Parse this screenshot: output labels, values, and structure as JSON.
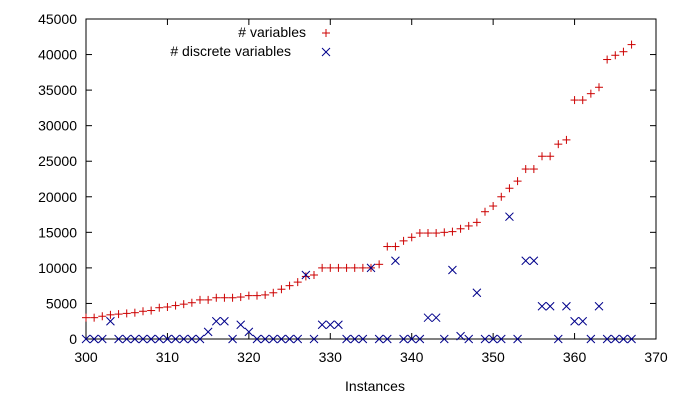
{
  "chart_data": {
    "type": "scatter",
    "title": "",
    "xlabel": "Instances",
    "ylabel": "",
    "xlim": [
      300,
      370
    ],
    "ylim": [
      0,
      45000
    ],
    "x_ticks": [
      300,
      310,
      320,
      330,
      340,
      350,
      360,
      370
    ],
    "y_ticks": [
      0,
      5000,
      10000,
      15000,
      20000,
      25000,
      30000,
      35000,
      40000,
      45000
    ],
    "grid": false,
    "legend_position": "top-left",
    "series": [
      {
        "name": "# variables",
        "marker": "plus",
        "color": "#cc0000",
        "x": [
          300,
          301,
          302,
          303,
          304,
          305,
          306,
          307,
          308,
          309,
          310,
          311,
          312,
          313,
          314,
          315,
          316,
          317,
          318,
          319,
          320,
          321,
          322,
          323,
          324,
          325,
          326,
          327,
          328,
          329,
          330,
          331,
          332,
          333,
          334,
          335,
          336,
          337,
          338,
          339,
          340,
          341,
          342,
          343,
          344,
          345,
          346,
          347,
          348,
          349,
          350,
          351,
          352,
          353,
          354,
          355,
          356,
          357,
          358,
          359,
          360,
          361,
          362,
          363,
          364,
          365,
          366,
          367
        ],
        "y": [
          3000,
          3000,
          3200,
          3400,
          3500,
          3600,
          3700,
          3900,
          4000,
          4400,
          4500,
          4700,
          4900,
          5100,
          5500,
          5500,
          5800,
          5800,
          5800,
          5900,
          6100,
          6100,
          6200,
          6500,
          7000,
          7500,
          8000,
          8800,
          9000,
          10000,
          10000,
          10000,
          10000,
          10000,
          10000,
          10000,
          10500,
          13000,
          13000,
          13800,
          14300,
          14900,
          14900,
          14900,
          15000,
          15100,
          15500,
          15900,
          16400,
          17900,
          18700,
          20000,
          21200,
          22200,
          23900,
          23900,
          25700,
          25700,
          27400,
          28000,
          33600,
          33600,
          34500,
          35400,
          39300,
          39900,
          40400,
          41400
        ]
      },
      {
        "name": "# discrete variables",
        "marker": "cross",
        "color": "#00008b",
        "x": [
          300,
          301,
          302,
          303,
          304,
          305,
          306,
          307,
          308,
          309,
          310,
          311,
          312,
          313,
          314,
          315,
          316,
          317,
          318,
          319,
          320,
          321,
          322,
          323,
          324,
          325,
          326,
          327,
          328,
          329,
          330,
          331,
          332,
          333,
          334,
          335,
          336,
          337,
          338,
          339,
          340,
          341,
          342,
          343,
          344,
          345,
          346,
          347,
          348,
          349,
          350,
          351,
          352,
          353,
          354,
          355,
          356,
          357,
          358,
          359,
          360,
          361,
          362,
          363,
          364,
          365,
          366,
          367
        ],
        "y": [
          0,
          0,
          0,
          2500,
          0,
          0,
          0,
          0,
          0,
          0,
          0,
          0,
          0,
          0,
          0,
          1000,
          2500,
          2500,
          0,
          2000,
          1000,
          0,
          0,
          0,
          0,
          0,
          0,
          9000,
          0,
          2000,
          2000,
          2000,
          0,
          0,
          0,
          10000,
          0,
          0,
          11000,
          0,
          0,
          0,
          3000,
          3000,
          0,
          9700,
          400,
          0,
          6500,
          0,
          0,
          0,
          17200,
          0,
          11000,
          11000,
          4600,
          4600,
          0,
          4600,
          2500,
          2500,
          0,
          4600,
          0,
          0,
          0,
          0
        ]
      }
    ]
  }
}
